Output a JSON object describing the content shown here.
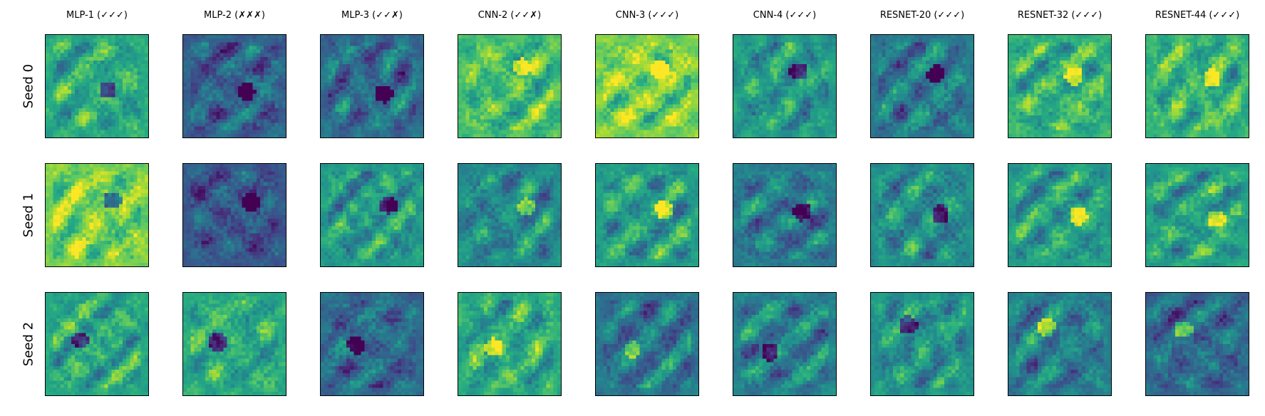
{
  "chart_data": {
    "type": "heatmap",
    "title": "",
    "colormap": "viridis",
    "columns": [
      "MLP-1 (✓✓✓)",
      "MLP-2 (✗✗✗)",
      "MLP-3 (✓✓✗)",
      "CNN-2 (✓✓✗)",
      "CNN-3 (✓✓✓)",
      "CNN-4 (✓✓✓)",
      "RESNET-20 (✓✓✓)",
      "RESNET-32 (✓✓✓)",
      "RESNET-44 (✓✓✓)"
    ],
    "rows": [
      "Seed 0",
      "Seed 1",
      "Seed 2"
    ],
    "image_resolution": 28,
    "axes_ticks": false,
    "panels_mean_level": [
      [
        0.62,
        0.32,
        0.36,
        0.7,
        0.8,
        0.55,
        0.42,
        0.65,
        0.66
      ],
      [
        0.8,
        0.28,
        0.55,
        0.48,
        0.56,
        0.42,
        0.5,
        0.57,
        0.58
      ],
      [
        0.6,
        0.62,
        0.36,
        0.62,
        0.4,
        0.44,
        0.52,
        0.44,
        0.36
      ]
    ]
  }
}
